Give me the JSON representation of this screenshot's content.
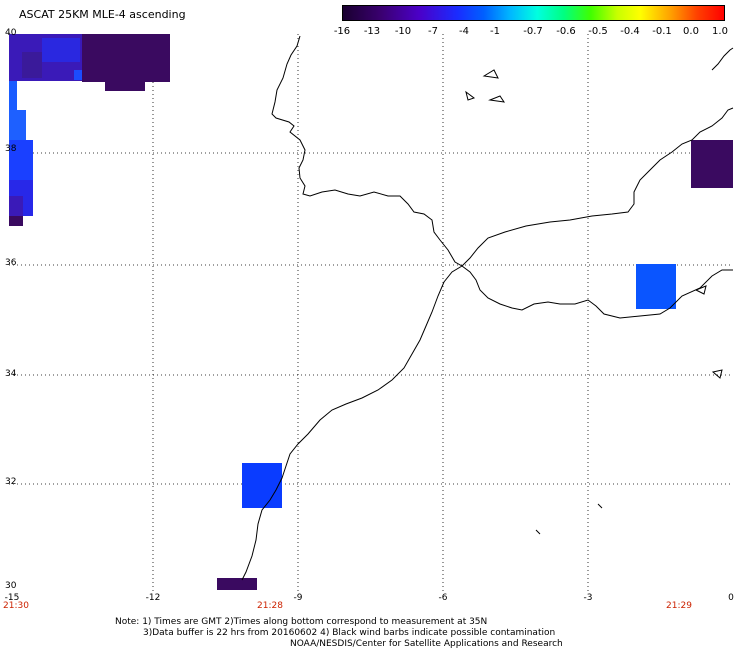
{
  "title": "ASCAT 25KM MLE-4 ascending",
  "colorbar": {
    "labels": [
      "-16",
      "-13",
      "-10",
      "-7",
      "-4",
      "-1",
      "-0.7",
      "-0.6",
      "-0.5",
      "-0.4",
      "-0.1",
      "0.0",
      "1.0"
    ]
  },
  "axes": {
    "lat_labels": [
      "40",
      "38",
      "36",
      "34",
      "32",
      "30"
    ],
    "lon_labels": [
      "-15",
      "-12",
      "-9",
      "-6",
      "-3",
      "0"
    ],
    "time_labels": [
      "21:30",
      "21:28",
      "21:29"
    ]
  },
  "notes": {
    "line1": "Note: 1) Times are GMT 2)Times along bottom correspond to measurement at 35N",
    "line2": "3)Data buffer is 22 hrs from 20160602 4) Black wind barbs indicate possible contamination",
    "line3": "NOAA/NESDIS/Center for Satellite Applications and Research"
  },
  "colors": {
    "deep_purple": "#3a005a",
    "violet": "#4b00a0",
    "blue": "#1a2cff",
    "mid_blue": "#0050ff",
    "time_red": "#cc2200"
  }
}
